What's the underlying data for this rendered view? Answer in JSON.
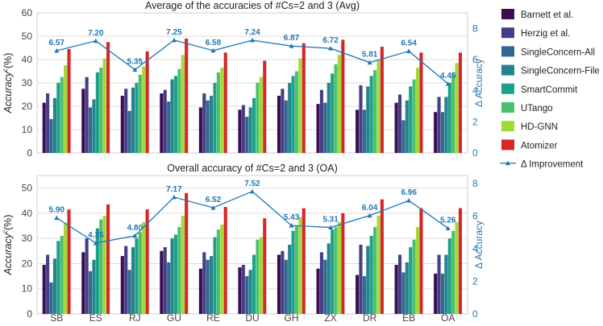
{
  "chart_data": [
    {
      "type": "bar",
      "title": "Average of the accuracies of #Cs=2 and 3 (Avg)",
      "ylabel": "Accuracy",
      "ylabel_sup": "c",
      "ylabel_suffix": "(%)",
      "y2label": "Δ Accuracy",
      "ylim": [
        0,
        60
      ],
      "y2lim": [
        0,
        9
      ],
      "yticks": [
        0,
        10,
        20,
        30,
        40,
        50,
        60
      ],
      "y2ticks": [
        0,
        2,
        4,
        6,
        8
      ],
      "grid": true,
      "categories": [
        "SB",
        "ES",
        "RJ",
        "GU",
        "RE",
        "DU",
        "GH",
        "ZX",
        "DR",
        "EB",
        "OA"
      ],
      "series": [
        {
          "name": "Barnett et al.",
          "values": [
            21.5,
            27.5,
            24.5,
            25.5,
            19.5,
            18.5,
            24.5,
            21,
            18.5,
            21.5,
            17.5
          ]
        },
        {
          "name": "Herzig et al.",
          "values": [
            25.5,
            32.5,
            27.5,
            27,
            25.5,
            20.5,
            27.5,
            27,
            29,
            25,
            24
          ]
        },
        {
          "name": "SingleConcern-All",
          "values": [
            14.5,
            19.5,
            18,
            22,
            22.5,
            15.5,
            22.5,
            21.5,
            18.5,
            14,
            17.5
          ]
        },
        {
          "name": "SingleConcern-File",
          "values": [
            23.5,
            23,
            28,
            31.5,
            24.5,
            19.5,
            30,
            30,
            28.5,
            22.5,
            24
          ]
        },
        {
          "name": "SmartCommit",
          "values": [
            30,
            34.5,
            30,
            33,
            30,
            23.5,
            33,
            34,
            33,
            28.5,
            30
          ]
        },
        {
          "name": "UTango",
          "values": [
            32.5,
            36.5,
            33.5,
            36,
            34.5,
            30,
            35,
            38,
            35.5,
            31.5,
            34
          ]
        },
        {
          "name": "HD-GNN",
          "values": [
            37.5,
            40.5,
            37,
            42,
            36.5,
            32.5,
            40.5,
            42,
            39.5,
            36.5,
            38.5
          ]
        },
        {
          "name": "Atomizer",
          "values": [
            44.5,
            47.5,
            43.5,
            49,
            43,
            39.5,
            47,
            48.5,
            45.5,
            43,
            43
          ]
        }
      ],
      "improvement": {
        "name": "Δ Improvement",
        "values": [
          6.57,
          7.2,
          5.35,
          7.25,
          6.58,
          7.24,
          6.87,
          6.72,
          5.81,
          6.54,
          4.45
        ],
        "labels": [
          "6.57",
          "7.20",
          "5.35",
          "7.25",
          "6.58",
          "7.24",
          "6.87",
          "6.72",
          "5.81",
          "6.54",
          "4.45"
        ]
      }
    },
    {
      "type": "bar",
      "title": "Overall accuracy of #Cs=2 and 3 (OA)",
      "ylabel": "Accuracy",
      "ylabel_sup": "c",
      "ylabel_suffix": "(%)",
      "y2label": "Δ Accuracy",
      "ylim": [
        0,
        55
      ],
      "y2lim": [
        0,
        8.5
      ],
      "yticks": [
        0,
        10,
        20,
        30,
        40,
        50
      ],
      "y2ticks": [
        0,
        2,
        4,
        6,
        8
      ],
      "grid": true,
      "categories": [
        "SB",
        "ES",
        "RJ",
        "GU",
        "RE",
        "DU",
        "GH",
        "ZX",
        "DR",
        "EB",
        "OA"
      ],
      "series": [
        {
          "name": "Barnett et al.",
          "values": [
            19.5,
            24.5,
            23,
            25,
            18,
            18.5,
            23.5,
            18,
            15.5,
            19.5,
            16
          ]
        },
        {
          "name": "Herzig et al.",
          "values": [
            23.5,
            30,
            27,
            26.5,
            24.5,
            19.5,
            25,
            24.5,
            27.5,
            23.5,
            23.5
          ]
        },
        {
          "name": "SingleConcern-All",
          "values": [
            12.5,
            17,
            17.5,
            20.5,
            21.5,
            15,
            21.5,
            21.5,
            15,
            16.5,
            16
          ]
        },
        {
          "name": "SingleConcern-File",
          "values": [
            22,
            21.5,
            26.5,
            30,
            23,
            17.5,
            27.5,
            28,
            27,
            20.5,
            23.5
          ]
        },
        {
          "name": "SmartCommit",
          "values": [
            29,
            34,
            30,
            31.5,
            30.5,
            23.5,
            33,
            33.5,
            31,
            26.5,
            30
          ]
        },
        {
          "name": "UTango",
          "values": [
            31,
            37.5,
            32.5,
            34.5,
            33.5,
            29.5,
            35,
            34.5,
            34.5,
            29.5,
            33
          ]
        },
        {
          "name": "HD-GNN",
          "values": [
            36,
            39,
            36.5,
            39,
            35.5,
            30.5,
            38.5,
            36.5,
            39,
            34.5,
            36.5
          ]
        },
        {
          "name": "Atomizer",
          "values": [
            41.5,
            43.5,
            41.5,
            48,
            42.5,
            38,
            42,
            40,
            45.5,
            42,
            42
          ]
        }
      ],
      "improvement": {
        "name": "Δ Improvement",
        "values": [
          5.9,
          4.35,
          4.8,
          7.17,
          6.52,
          7.52,
          5.43,
          5.31,
          6.04,
          6.96,
          5.26
        ],
        "labels": [
          "5.90",
          "4.35",
          "4.80",
          "7.17",
          "6.52",
          "7.52",
          "5.43",
          "5.31",
          "6.04",
          "6.96",
          "5.26"
        ]
      }
    }
  ],
  "legend": {
    "items": [
      {
        "label": "Barnett et al.",
        "color": "#3b0f4f"
      },
      {
        "label": "Herzig et al.",
        "color": "#433e85"
      },
      {
        "label": "SingleConcern-All",
        "color": "#31688e"
      },
      {
        "label": "SingleConcern-File",
        "color": "#26828e"
      },
      {
        "label": "SmartCommit",
        "color": "#1fa187"
      },
      {
        "label": "UTango",
        "color": "#4ac16d"
      },
      {
        "label": "HD-GNN",
        "color": "#a0da39"
      },
      {
        "label": "Atomizer",
        "color": "#d62728"
      }
    ],
    "line_label": "Δ Improvement",
    "line_color": "#1f77b4"
  },
  "colors": {
    "grid": "#dddddd",
    "axis_text": "#444444",
    "right_axis": "#1f77b4"
  }
}
